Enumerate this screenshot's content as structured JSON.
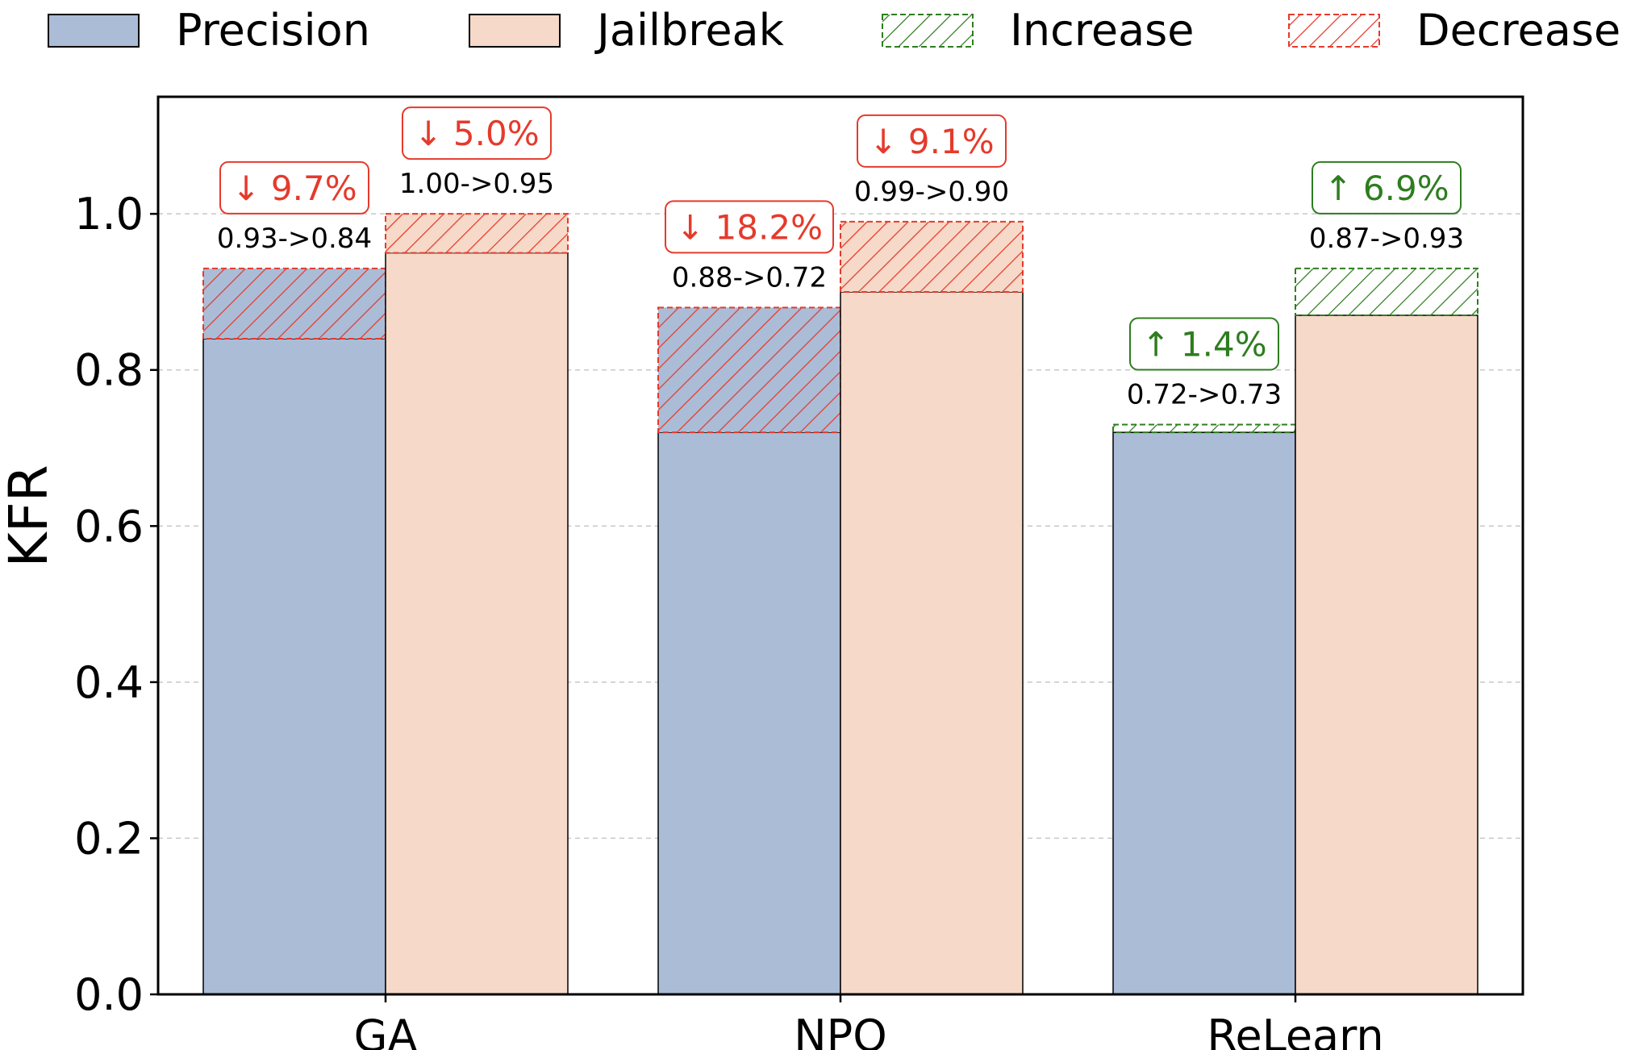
{
  "chart_data": {
    "type": "bar",
    "ylabel": "KFR",
    "ylim": [
      0,
      1.15
    ],
    "yticks": [
      "0.0",
      "0.2",
      "0.4",
      "0.6",
      "0.8",
      "1.0"
    ],
    "grid": "y-dashed",
    "legend_placement": "top",
    "categories": [
      "GA",
      "NPO",
      "ReLearn"
    ],
    "legend": [
      {
        "name": "Precision",
        "kind": "solid",
        "color": "#abbcd7"
      },
      {
        "name": "Jailbreak",
        "kind": "solid",
        "color": "#f6d9c8"
      },
      {
        "name": "Increase",
        "kind": "hatch",
        "color": "#2e7d1f"
      },
      {
        "name": "Decrease",
        "kind": "hatch",
        "color": "#e53a2c"
      }
    ],
    "series": [
      {
        "name": "Precision",
        "color": "#abbcd7",
        "from": [
          0.93,
          0.88,
          0.72
        ],
        "to": [
          0.84,
          0.72,
          0.73
        ],
        "transition_labels": [
          "0.93->0.84",
          "0.88->0.72",
          "0.72->0.73"
        ],
        "change_labels": [
          "↓ 9.7%",
          "↓ 18.2%",
          "↑ 1.4%"
        ],
        "direction": [
          "decrease",
          "decrease",
          "increase"
        ]
      },
      {
        "name": "Jailbreak",
        "color": "#f6d9c8",
        "from": [
          1.0,
          0.99,
          0.87
        ],
        "to": [
          0.95,
          0.9,
          0.93
        ],
        "transition_labels": [
          "1.00->0.95",
          "0.99->0.90",
          "0.87->0.93"
        ],
        "change_labels": [
          "↓ 5.0%",
          "↓ 9.1%",
          "↑ 6.9%"
        ],
        "direction": [
          "decrease",
          "decrease",
          "increase"
        ]
      }
    ],
    "colors": {
      "increase": "#2e7d1f",
      "decrease": "#e53a2c"
    }
  }
}
